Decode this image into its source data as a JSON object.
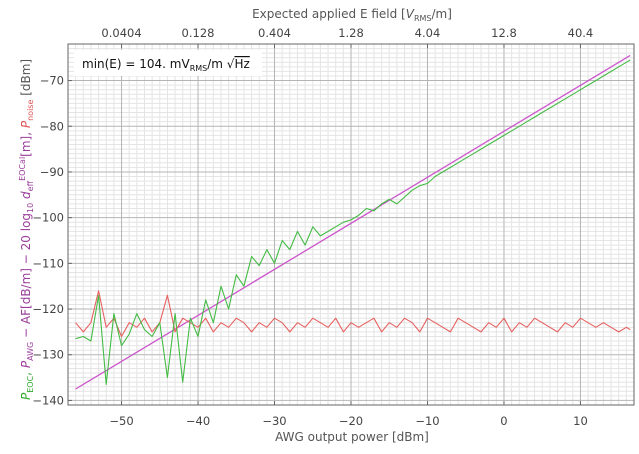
{
  "chart_data": {
    "type": "line",
    "top_axis": {
      "label": "Expected applied E field [V_RMS/m]",
      "label_parts": [
        "Expected applied E field [",
        "V",
        "RMS",
        "/m]"
      ],
      "ticks": [
        {
          "x": -50,
          "label": "0.0404"
        },
        {
          "x": -40,
          "label": "0.128"
        },
        {
          "x": -30,
          "label": "0.404"
        },
        {
          "x": -20,
          "label": "1.28"
        },
        {
          "x": -10,
          "label": "4.04"
        },
        {
          "x": 0,
          "label": "12.8"
        },
        {
          "x": 10,
          "label": "40.4"
        }
      ]
    },
    "xlabel": "AWG output power [dBm]",
    "ylabel_parts": {
      "eoc": [
        "P",
        "EOC",
        ","
      ],
      "awg": [
        " P",
        "AWG",
        " − AF[dB/m] − 20 log",
        "10",
        " d",
        "eff",
        "EOCal",
        "[m], "
      ],
      "noise": [
        "P",
        "noise"
      ],
      "units": [
        " [dBm]"
      ]
    },
    "annotation": {
      "prefix": "min(E) = 104. mV",
      "sub": "RMS",
      "suffix": "/m ",
      "radicand": "Hz"
    },
    "xlim": [
      -57,
      17
    ],
    "ylim": [
      -141,
      -62
    ],
    "xticks": [
      -50,
      -40,
      -30,
      -20,
      -10,
      0,
      10
    ],
    "yticks": [
      -140,
      -130,
      -120,
      -110,
      -100,
      -90,
      -80,
      -70
    ],
    "grid": true,
    "series": [
      {
        "key": "awg_line",
        "color": "#cc55cc",
        "x": [
          -56,
          16.5
        ],
        "y": [
          -137.5,
          -64.5
        ]
      },
      {
        "key": "eoc",
        "color": "#44bb44",
        "x": [
          -56,
          -55,
          -54,
          -53,
          -52,
          -51,
          -50,
          -49,
          -48,
          -47,
          -46,
          -45,
          -44,
          -43,
          -42,
          -41,
          -40,
          -39,
          -38,
          -37,
          -36,
          -35,
          -34,
          -33,
          -32,
          -31,
          -30,
          -29,
          -28,
          -27,
          -26,
          -25,
          -24,
          -23,
          -22,
          -21,
          -20,
          -19,
          -18,
          -17,
          -16,
          -15,
          -14,
          -13,
          -12,
          -11,
          -10,
          -9,
          -8,
          -7,
          -6,
          -5,
          -4,
          -3,
          -2,
          -1,
          0,
          1,
          2,
          3,
          4,
          5,
          6,
          7,
          8,
          9,
          10,
          11,
          12,
          13,
          14,
          15,
          16,
          16.5
        ],
        "y": [
          -126.5,
          -126,
          -127,
          -117,
          -136.5,
          -121,
          -128,
          -125.5,
          -121,
          -124.5,
          -126,
          -123,
          -135,
          -121,
          -136,
          -122,
          -126,
          -118,
          -123,
          -115,
          -120,
          -112.5,
          -115,
          -108.5,
          -110.5,
          -107,
          -110,
          -105,
          -107,
          -103,
          -106,
          -102,
          -104,
          -103,
          -102,
          -101,
          -100.5,
          -99.5,
          -98,
          -98.5,
          -97,
          -96,
          -97,
          -95.5,
          -94,
          -93,
          -92.5,
          -91,
          -90,
          -89,
          -88,
          -87,
          -86,
          -85,
          -84,
          -83,
          -82,
          -81,
          -80,
          -79,
          -78,
          -77,
          -76,
          -75,
          -74,
          -73,
          -72,
          -71,
          -70,
          -69,
          -68,
          -67,
          -66,
          -65.5
        ]
      },
      {
        "key": "noise",
        "color": "#e66060",
        "x": [
          -56,
          -55,
          -54,
          -53,
          -52,
          -51,
          -50,
          -49,
          -48,
          -47,
          -46,
          -45,
          -44,
          -43,
          -42,
          -41,
          -40,
          -39,
          -38,
          -37,
          -36,
          -35,
          -34,
          -33,
          -32,
          -31,
          -30,
          -29,
          -28,
          -27,
          -26,
          -25,
          -24,
          -23,
          -22,
          -21,
          -20,
          -19,
          -18,
          -17,
          -16,
          -15,
          -14,
          -13,
          -12,
          -11,
          -10,
          -9,
          -8,
          -7,
          -6,
          -5,
          -4,
          -3,
          -2,
          -1,
          0,
          1,
          2,
          3,
          4,
          5,
          6,
          7,
          8,
          9,
          10,
          11,
          12,
          13,
          14,
          15,
          16,
          16.5
        ],
        "y": [
          -123,
          -125,
          -123,
          -116,
          -124,
          -122,
          -126,
          -123,
          -124,
          -122,
          -125,
          -123,
          -117,
          -125,
          -122,
          -123,
          -124,
          -122,
          -125,
          -123,
          -124,
          -122,
          -123,
          -125,
          -123,
          -124,
          -122,
          -123,
          -125,
          -123,
          -124,
          -122,
          -123,
          -124,
          -122,
          -125,
          -123,
          -124,
          -123,
          -122,
          -125,
          -123,
          -124,
          -122,
          -123,
          -125,
          -122,
          -123,
          -124,
          -125,
          -122,
          -123,
          -124,
          -125,
          -123,
          -124,
          -122,
          -125,
          -123,
          -124,
          -122,
          -123,
          -124,
          -125,
          -123,
          -124,
          -122,
          -123,
          -124,
          -123,
          -124,
          -125,
          -124,
          -124.5
        ]
      }
    ]
  }
}
